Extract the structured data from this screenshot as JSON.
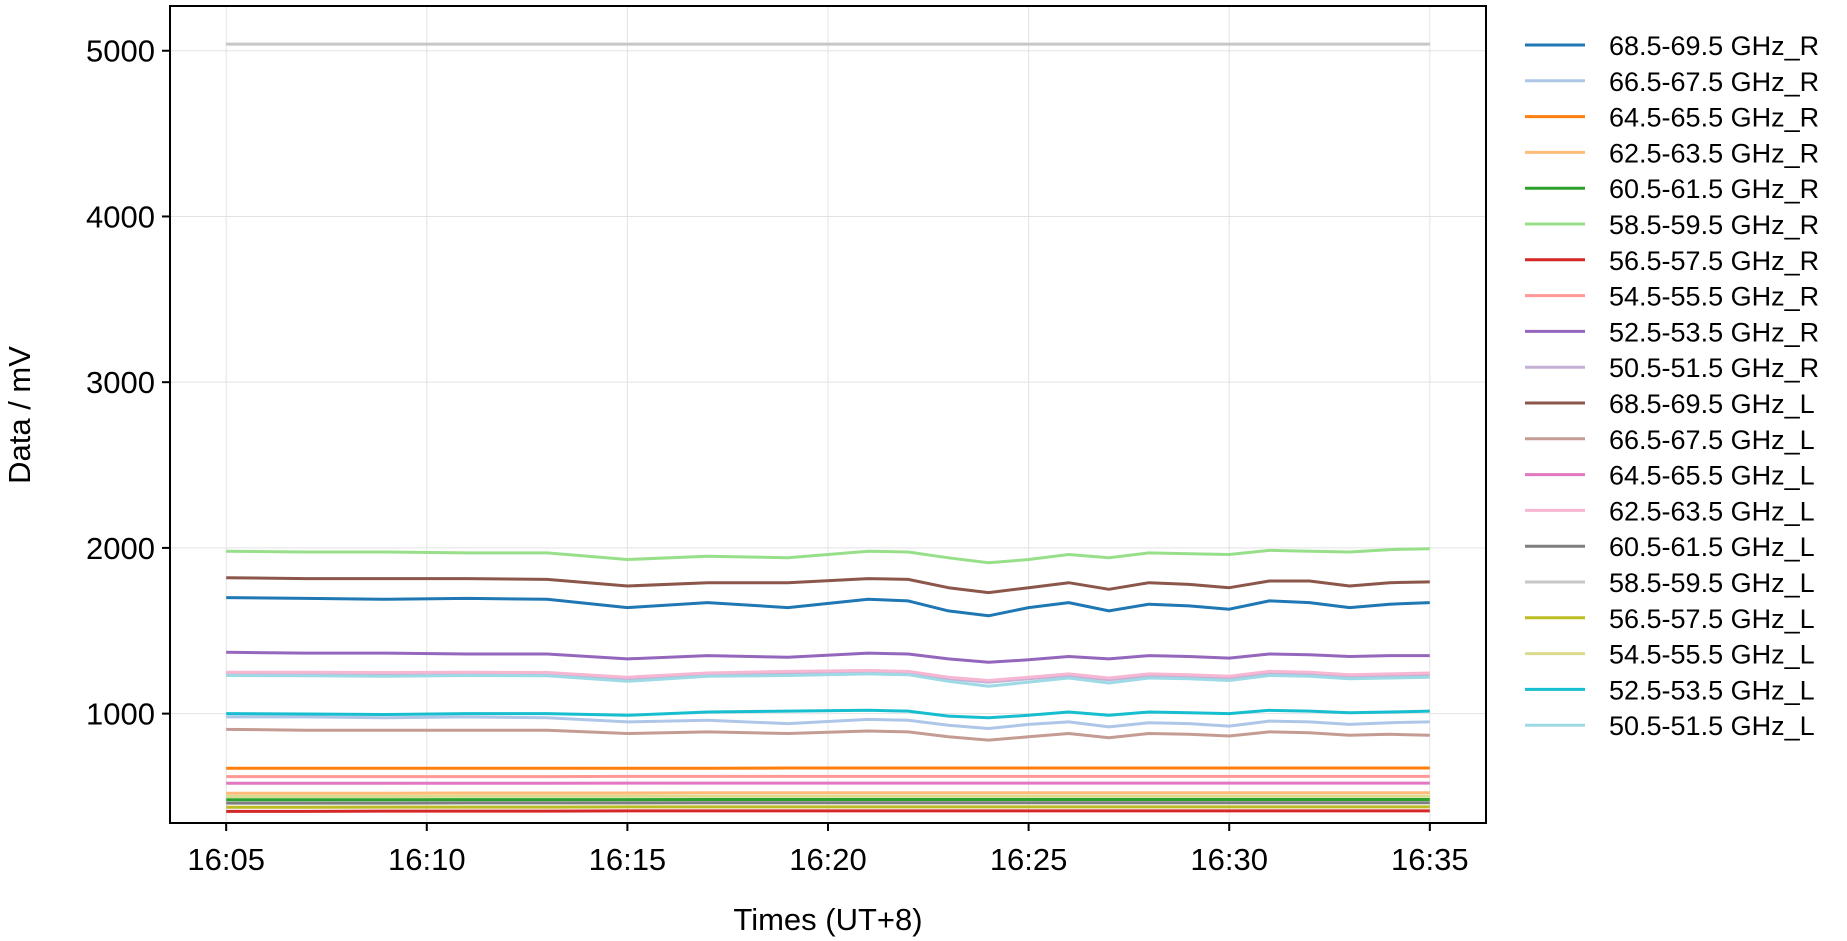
{
  "chart_data": {
    "type": "line",
    "title": "",
    "xlabel": "Times (UT+8)",
    "ylabel": "Data / mV",
    "x_ticks": [
      "16:05",
      "16:10",
      "16:15",
      "16:20",
      "16:25",
      "16:30",
      "16:35"
    ],
    "y_ticks": [
      1000,
      2000,
      3000,
      4000,
      5000
    ],
    "xlim": [
      "16:03:36",
      "16:36:24"
    ],
    "ylim": [
      340,
      5270
    ],
    "grid": true,
    "legend_position": "outside-right",
    "x": [
      "16:05",
      "16:07",
      "16:09",
      "16:11",
      "16:13",
      "16:15",
      "16:17",
      "16:19",
      "16:21",
      "16:22",
      "16:23",
      "16:24",
      "16:25",
      "16:26",
      "16:27",
      "16:28",
      "16:29",
      "16:30",
      "16:31",
      "16:32",
      "16:33",
      "16:34",
      "16:35"
    ],
    "series": [
      {
        "name": "68.5-69.5 GHz_R",
        "color": "#1f77b4",
        "values": [
          1700,
          1695,
          1690,
          1695,
          1690,
          1640,
          1670,
          1640,
          1690,
          1680,
          1620,
          1590,
          1640,
          1670,
          1620,
          1660,
          1650,
          1630,
          1680,
          1670,
          1640,
          1660,
          1670
        ]
      },
      {
        "name": "66.5-67.5 GHz_R",
        "color": "#aec7e8",
        "values": [
          980,
          980,
          975,
          980,
          975,
          950,
          960,
          940,
          965,
          960,
          930,
          910,
          935,
          950,
          920,
          945,
          940,
          925,
          955,
          950,
          935,
          945,
          950
        ]
      },
      {
        "name": "64.5-65.5 GHz_R",
        "color": "#ff7f0e",
        "values": [
          670,
          670,
          670,
          670,
          670,
          670,
          670,
          672,
          672,
          672,
          672,
          672,
          672,
          672,
          672,
          672,
          672,
          672,
          672,
          672,
          672,
          672,
          672
        ]
      },
      {
        "name": "62.5-63.5 GHz_R",
        "color": "#ffbb78",
        "values": [
          520,
          520,
          520,
          521,
          521,
          521,
          522,
          522,
          522,
          522,
          522,
          522,
          522,
          522,
          522,
          522,
          522,
          522,
          522,
          522,
          522,
          522,
          522
        ]
      },
      {
        "name": "60.5-61.5 GHz_R",
        "color": "#2ca02c",
        "values": [
          480,
          480,
          480,
          481,
          481,
          481,
          482,
          482,
          482,
          482,
          482,
          482,
          482,
          482,
          482,
          482,
          482,
          482,
          482,
          482,
          482,
          482,
          482
        ]
      },
      {
        "name": "58.5-59.5 GHz_R",
        "color": "#98df8a",
        "values": [
          1980,
          1975,
          1975,
          1970,
          1970,
          1930,
          1950,
          1940,
          1980,
          1975,
          1940,
          1910,
          1930,
          1960,
          1940,
          1970,
          1965,
          1960,
          1985,
          1980,
          1975,
          1990,
          1995
        ]
      },
      {
        "name": "56.5-57.5 GHz_R",
        "color": "#d62728",
        "values": [
          410,
          410,
          412,
          412,
          412,
          413,
          413,
          413,
          413,
          413,
          413,
          413,
          413,
          413,
          413,
          413,
          413,
          413,
          413,
          413,
          413,
          413,
          413
        ]
      },
      {
        "name": "54.5-55.5 GHz_R",
        "color": "#ff9896",
        "values": [
          620,
          620,
          620,
          620,
          620,
          621,
          621,
          621,
          621,
          621,
          621,
          621,
          621,
          621,
          621,
          621,
          621,
          621,
          621,
          621,
          621,
          621,
          621
        ]
      },
      {
        "name": "52.5-53.5 GHz_R",
        "color": "#9467bd",
        "values": [
          1370,
          1365,
          1365,
          1360,
          1360,
          1330,
          1350,
          1340,
          1365,
          1360,
          1330,
          1310,
          1325,
          1345,
          1330,
          1350,
          1345,
          1335,
          1360,
          1355,
          1345,
          1350,
          1350
        ]
      },
      {
        "name": "50.5-51.5 GHz_R",
        "color": "#c5b0d5",
        "values": [
          1240,
          1240,
          1238,
          1240,
          1238,
          1210,
          1235,
          1240,
          1250,
          1245,
          1210,
          1190,
          1210,
          1230,
          1205,
          1230,
          1225,
          1215,
          1245,
          1240,
          1225,
          1230,
          1235
        ]
      },
      {
        "name": "68.5-69.5 GHz_L",
        "color": "#8c564b",
        "values": [
          1820,
          1815,
          1815,
          1815,
          1810,
          1770,
          1790,
          1790,
          1815,
          1810,
          1760,
          1730,
          1760,
          1790,
          1750,
          1790,
          1780,
          1760,
          1800,
          1800,
          1770,
          1790,
          1795
        ]
      },
      {
        "name": "66.5-67.5 GHz_L",
        "color": "#c49c94",
        "values": [
          905,
          900,
          900,
          900,
          900,
          880,
          890,
          880,
          895,
          890,
          860,
          840,
          860,
          880,
          855,
          880,
          875,
          865,
          890,
          885,
          870,
          875,
          870
        ]
      },
      {
        "name": "64.5-65.5 GHz_L",
        "color": "#e377c2",
        "values": [
          580,
          580,
          580,
          580,
          580,
          581,
          581,
          581,
          581,
          581,
          581,
          581,
          581,
          581,
          581,
          581,
          581,
          581,
          581,
          581,
          581,
          581,
          581
        ]
      },
      {
        "name": "62.5-63.5 GHz_L",
        "color": "#f7b6d2",
        "values": [
          1250,
          1250,
          1248,
          1250,
          1248,
          1220,
          1245,
          1255,
          1260,
          1255,
          1220,
          1200,
          1220,
          1240,
          1215,
          1240,
          1235,
          1225,
          1255,
          1250,
          1235,
          1240,
          1245
        ]
      },
      {
        "name": "60.5-61.5 GHz_L",
        "color": "#7f7f7f",
        "values": [
          460,
          460,
          460,
          461,
          461,
          461,
          462,
          462,
          462,
          462,
          462,
          462,
          462,
          462,
          462,
          462,
          462,
          462,
          462,
          462,
          462,
          462,
          462
        ]
      },
      {
        "name": "58.5-59.5 GHz_L",
        "color": "#c7c7c7",
        "values": [
          5040,
          5040,
          5040,
          5040,
          5040,
          5040,
          5040,
          5040,
          5040,
          5040,
          5040,
          5040,
          5040,
          5040,
          5040,
          5040,
          5040,
          5040,
          5040,
          5040,
          5040,
          5040,
          5040
        ]
      },
      {
        "name": "56.5-57.5 GHz_L",
        "color": "#bcbd22",
        "values": [
          435,
          435,
          436,
          436,
          436,
          437,
          437,
          437,
          437,
          437,
          437,
          437,
          437,
          437,
          437,
          437,
          437,
          437,
          437,
          437,
          437,
          437,
          437
        ]
      },
      {
        "name": "54.5-55.5 GHz_L",
        "color": "#dbdb8d",
        "values": [
          500,
          500,
          500,
          501,
          501,
          501,
          502,
          502,
          502,
          502,
          502,
          502,
          502,
          502,
          502,
          502,
          502,
          502,
          502,
          502,
          502,
          502,
          502
        ]
      },
      {
        "name": "52.5-53.5 GHz_L",
        "color": "#17becf",
        "values": [
          1000,
          998,
          995,
          1000,
          1000,
          990,
          1010,
          1015,
          1020,
          1015,
          985,
          975,
          990,
          1010,
          990,
          1010,
          1005,
          1000,
          1020,
          1015,
          1005,
          1010,
          1015
        ]
      },
      {
        "name": "50.5-51.5 GHz_L",
        "color": "#9edae5",
        "values": [
          1230,
          1228,
          1225,
          1230,
          1228,
          1195,
          1225,
          1230,
          1240,
          1235,
          1195,
          1165,
          1190,
          1215,
          1185,
          1215,
          1210,
          1200,
          1230,
          1225,
          1210,
          1215,
          1220
        ]
      }
    ]
  }
}
